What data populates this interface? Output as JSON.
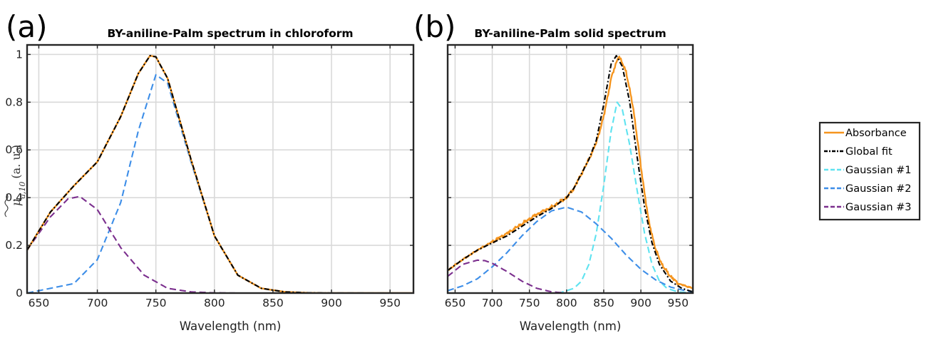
{
  "chart_data": [
    {
      "type": "line",
      "panel_label": "(a)",
      "title": "BY-aniline-Palm spectrum in chloroform",
      "xlabel": "Wavelength (nm)",
      "ylabel": "μ̃ a,10 (a. u.)",
      "ylabel_parts": {
        "symbol": "μ",
        "subscript": "a,10",
        "unit": "(a. u.)"
      },
      "xlim": [
        640,
        970
      ],
      "ylim": [
        0,
        1.04
      ],
      "xticks": [
        650,
        700,
        750,
        800,
        850,
        900,
        950
      ],
      "yticks": [
        0,
        0.2,
        0.4,
        0.6,
        0.8,
        1
      ],
      "ytick_labels": [
        "0",
        "0.2",
        "0.4",
        "0.6",
        "0.8",
        "1"
      ],
      "grid": true,
      "series": [
        {
          "name": "Absorbance",
          "color": "#F5951F",
          "dash": "solid",
          "x": [
            640,
            660,
            680,
            700,
            720,
            735,
            745,
            750,
            760,
            780,
            800,
            820,
            840,
            860,
            880,
            900,
            970
          ],
          "y": [
            0.18,
            0.34,
            0.45,
            0.55,
            0.74,
            0.92,
            0.995,
            0.99,
            0.9,
            0.56,
            0.24,
            0.075,
            0.02,
            0.005,
            0.001,
            0,
            0
          ]
        },
        {
          "name": "Global fit",
          "color": "#000000",
          "dash": "dashdot",
          "x": [
            640,
            660,
            680,
            700,
            720,
            735,
            745,
            750,
            760,
            780,
            800,
            820,
            840,
            860,
            880,
            900,
            970
          ],
          "y": [
            0.18,
            0.34,
            0.45,
            0.55,
            0.74,
            0.92,
            0.995,
            0.99,
            0.9,
            0.56,
            0.24,
            0.075,
            0.02,
            0.005,
            0.001,
            0,
            0
          ]
        },
        {
          "name": "Gaussian #1",
          "color": "#5FE3F0",
          "dash": "dashed",
          "x": [
            640,
            970
          ],
          "y": [
            0,
            0
          ]
        },
        {
          "name": "Gaussian #2",
          "color": "#3D8EE8",
          "dash": "dashed",
          "x": [
            640,
            680,
            700,
            720,
            735,
            750,
            760,
            780,
            800,
            820,
            840,
            860,
            880,
            970
          ],
          "y": [
            0,
            0.04,
            0.14,
            0.38,
            0.68,
            0.915,
            0.88,
            0.55,
            0.24,
            0.075,
            0.02,
            0.004,
            0.001,
            0
          ]
        },
        {
          "name": "Gaussian #3",
          "color": "#7B2F8E",
          "dash": "dashed",
          "x": [
            640,
            660,
            675,
            685,
            700,
            720,
            740,
            760,
            780,
            800,
            820,
            970
          ],
          "y": [
            0.18,
            0.32,
            0.395,
            0.405,
            0.35,
            0.19,
            0.075,
            0.02,
            0.005,
            0.001,
            0,
            0
          ]
        }
      ]
    },
    {
      "type": "line",
      "panel_label": "(b)",
      "title": "BY-aniline-Palm solid spectrum",
      "xlabel": "Wavelength (nm)",
      "xlim": [
        640,
        970
      ],
      "ylim": [
        0,
        1.04
      ],
      "xticks": [
        650,
        700,
        750,
        800,
        850,
        900,
        950
      ],
      "yticks": [
        0,
        0.2,
        0.4,
        0.6,
        0.8,
        1
      ],
      "grid": true,
      "series": [
        {
          "name": "Absorbance",
          "color": "#F5951F",
          "dash": "solid",
          "noisy": true,
          "x": [
            640,
            660,
            680,
            700,
            720,
            740,
            760,
            780,
            800,
            810,
            820,
            830,
            840,
            850,
            860,
            870,
            880,
            890,
            900,
            910,
            920,
            930,
            940,
            950,
            970
          ],
          "y": [
            0.095,
            0.14,
            0.18,
            0.215,
            0.25,
            0.29,
            0.33,
            0.36,
            0.4,
            0.44,
            0.5,
            0.56,
            0.63,
            0.74,
            0.9,
            0.995,
            0.93,
            0.77,
            0.53,
            0.31,
            0.18,
            0.11,
            0.07,
            0.04,
            0.02
          ]
        },
        {
          "name": "Global fit",
          "color": "#000000",
          "dash": "dashdot",
          "x": [
            640,
            660,
            680,
            700,
            720,
            740,
            760,
            780,
            800,
            810,
            820,
            830,
            840,
            850,
            860,
            867,
            875,
            885,
            895,
            905,
            915,
            925,
            940,
            955,
            970
          ],
          "y": [
            0.095,
            0.14,
            0.18,
            0.21,
            0.24,
            0.28,
            0.32,
            0.355,
            0.4,
            0.44,
            0.5,
            0.56,
            0.64,
            0.79,
            0.96,
            0.995,
            0.95,
            0.8,
            0.57,
            0.36,
            0.21,
            0.12,
            0.05,
            0.02,
            0.005
          ]
        },
        {
          "name": "Gaussian #1",
          "color": "#5FE3F0",
          "dash": "dashed",
          "x": [
            640,
            790,
            810,
            820,
            830,
            840,
            850,
            860,
            868,
            875,
            885,
            895,
            905,
            915,
            925,
            935,
            950,
            970
          ],
          "y": [
            0,
            0,
            0.02,
            0.05,
            0.12,
            0.25,
            0.45,
            0.68,
            0.8,
            0.77,
            0.62,
            0.43,
            0.25,
            0.12,
            0.05,
            0.02,
            0.005,
            0
          ]
        },
        {
          "name": "Gaussian #2",
          "color": "#3D8EE8",
          "dash": "dashed",
          "x": [
            640,
            660,
            680,
            700,
            720,
            740,
            760,
            780,
            800,
            820,
            840,
            860,
            880,
            900,
            920,
            940,
            960,
            970
          ],
          "y": [
            0.01,
            0.03,
            0.06,
            0.11,
            0.17,
            0.24,
            0.3,
            0.345,
            0.36,
            0.34,
            0.29,
            0.23,
            0.16,
            0.1,
            0.055,
            0.025,
            0.01,
            0.005
          ]
        },
        {
          "name": "Gaussian #3",
          "color": "#7B2F8E",
          "dash": "dashed",
          "x": [
            640,
            660,
            680,
            690,
            700,
            720,
            740,
            760,
            780,
            800,
            820,
            970
          ],
          "y": [
            0.07,
            0.12,
            0.138,
            0.136,
            0.125,
            0.09,
            0.05,
            0.02,
            0.005,
            0,
            0,
            0
          ]
        }
      ]
    }
  ],
  "legend": {
    "placement": "right",
    "entries": [
      {
        "label": "Absorbance",
        "color": "#F5951F",
        "dash": "solid"
      },
      {
        "label": "Global fit",
        "color": "#000000",
        "dash": "dashdot"
      },
      {
        "label": "Gaussian #1",
        "color": "#5FE3F0",
        "dash": "dashed"
      },
      {
        "label": "Gaussian #2",
        "color": "#3D8EE8",
        "dash": "dashed"
      },
      {
        "label": "Gaussian #3",
        "color": "#7B2F8E",
        "dash": "dashed"
      }
    ]
  }
}
